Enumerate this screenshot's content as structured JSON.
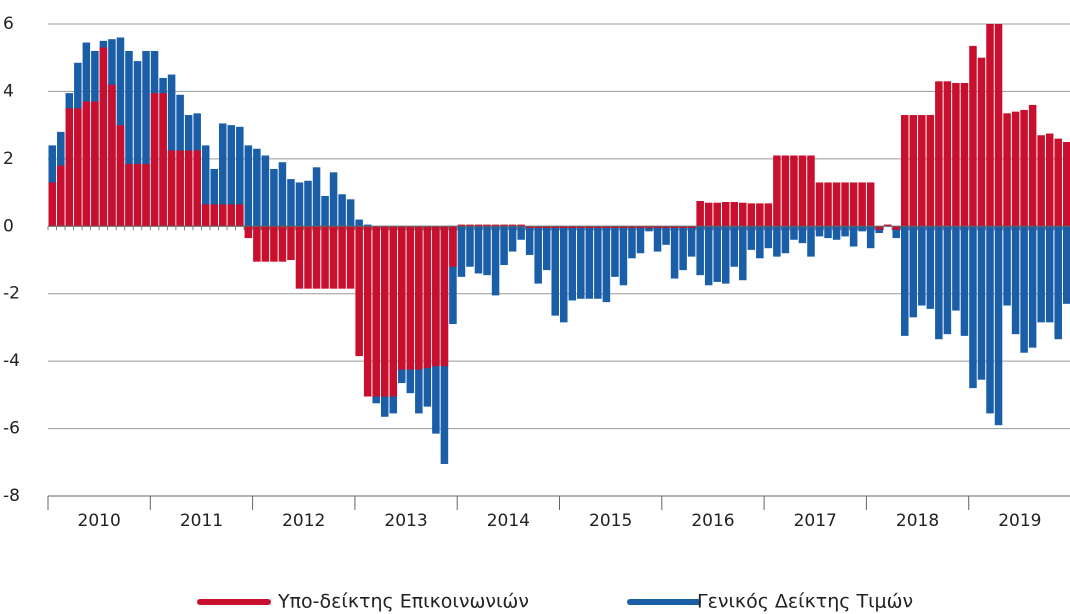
{
  "chart_data": {
    "type": "bar",
    "x_labels": [
      "2010",
      "2011",
      "2012",
      "2013",
      "2014",
      "2015",
      "2016",
      "2017",
      "2018",
      "2019"
    ],
    "ylim": [
      -8,
      6
    ],
    "yticks": [
      -8,
      -6,
      -4,
      -2,
      0,
      2,
      4,
      6
    ],
    "grid": true,
    "series": [
      {
        "name": "Γενικός Δείκτης Τιμών",
        "color": "#1a5ea8",
        "values": [
          2.4,
          2.8,
          3.95,
          4.85,
          5.45,
          5.2,
          5.5,
          5.55,
          5.6,
          5.2,
          4.9,
          5.2,
          5.2,
          4.4,
          4.5,
          3.9,
          3.3,
          3.35,
          2.4,
          1.7,
          3.05,
          3.0,
          2.95,
          2.4,
          2.3,
          2.1,
          1.7,
          1.9,
          1.4,
          1.3,
          1.35,
          1.75,
          0.9,
          1.6,
          0.95,
          0.8,
          0.2,
          0.05,
          -5.25,
          -5.65,
          -5.55,
          -4.65,
          -4.95,
          -5.55,
          -5.35,
          -6.15,
          -7.05,
          -2.9,
          -1.5,
          -1.2,
          -1.4,
          -1.45,
          -2.05,
          -1.15,
          -0.75,
          -0.4,
          -0.85,
          -1.7,
          -1.3,
          -2.65,
          -2.85,
          -2.2,
          -2.15,
          -2.15,
          -2.15,
          -2.25,
          -1.5,
          -1.75,
          -0.95,
          -0.8,
          -0.15,
          -0.75,
          -0.55,
          -1.55,
          -1.3,
          -0.9,
          -1.45,
          -1.75,
          -1.65,
          -1.7,
          -1.2,
          -1.6,
          -0.7,
          -0.95,
          -0.65,
          -0.9,
          -0.8,
          -0.4,
          -0.5,
          -0.9,
          -0.3,
          -0.35,
          -0.4,
          -0.3,
          -0.6,
          -0.15,
          -0.65,
          -0.2,
          0.05,
          -0.35,
          -3.25,
          -2.7,
          -2.35,
          -2.45,
          -3.35,
          -3.2,
          -2.5,
          -3.25,
          -4.8,
          -4.55,
          -5.55,
          -5.9,
          -2.35,
          -3.2,
          -3.75,
          -3.6,
          -2.85,
          -2.85,
          -3.35,
          -2.3
        ]
      },
      {
        "name": "Υπο-δείκτης Επικοινωνιών",
        "color": "#c8102e",
        "values": [
          1.3,
          1.8,
          3.5,
          3.5,
          3.7,
          3.7,
          5.3,
          4.2,
          3.0,
          1.85,
          1.85,
          1.85,
          3.95,
          3.95,
          2.25,
          2.25,
          2.25,
          2.25,
          0.65,
          0.65,
          0.65,
          0.65,
          0.65,
          -0.35,
          -1.05,
          -1.05,
          -1.05,
          -1.05,
          -1.0,
          -1.85,
          -1.85,
          -1.85,
          -1.85,
          -1.85,
          -1.85,
          -1.85,
          -3.85,
          -5.05,
          -5.05,
          -5.05,
          -5.05,
          -4.25,
          -4.25,
          -4.25,
          -4.2,
          -4.15,
          -4.15,
          -1.2,
          0.05,
          0.05,
          0.05,
          0.05,
          0.05,
          0.05,
          0.05,
          0.05,
          -0.05,
          -0.05,
          -0.05,
          -0.05,
          -0.05,
          -0.05,
          -0.05,
          -0.05,
          -0.05,
          -0.05,
          -0.05,
          -0.05,
          -0.05,
          -0.05,
          -0.05,
          -0.05,
          -0.05,
          -0.05,
          -0.05,
          -0.05,
          0.75,
          0.7,
          0.7,
          0.72,
          0.72,
          0.7,
          0.68,
          0.68,
          0.68,
          2.1,
          2.1,
          2.1,
          2.1,
          2.1,
          1.3,
          1.3,
          1.3,
          1.3,
          1.3,
          1.3,
          1.3,
          -0.1,
          0.05,
          -0.1,
          3.3,
          3.3,
          3.3,
          3.3,
          4.3,
          4.3,
          4.25,
          4.25,
          5.35,
          5.0,
          6.2,
          6.2,
          3.35,
          3.4,
          3.45,
          3.6,
          2.7,
          2.75,
          2.6,
          2.5
        ]
      }
    ]
  }
}
